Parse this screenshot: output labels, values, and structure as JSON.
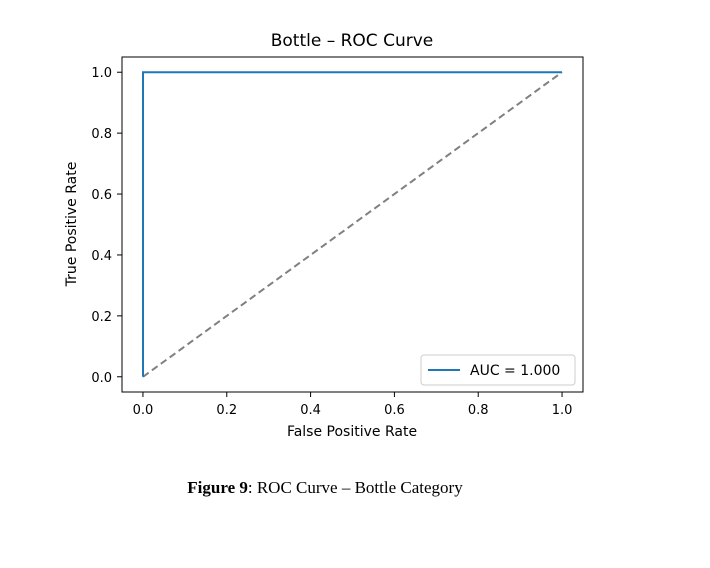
{
  "chart_data": {
    "type": "line",
    "title": "Bottle – ROC Curve",
    "xlabel": "False Positive Rate",
    "ylabel": "True Positive Rate",
    "xlim": [
      -0.05,
      1.05
    ],
    "ylim": [
      -0.05,
      1.05
    ],
    "xticks": [
      0.0,
      0.2,
      0.4,
      0.6,
      0.8,
      1.0
    ],
    "yticks": [
      0.0,
      0.2,
      0.4,
      0.6,
      0.8,
      1.0
    ],
    "xtick_labels": [
      "0.0",
      "0.2",
      "0.4",
      "0.6",
      "0.8",
      "1.0"
    ],
    "ytick_labels": [
      "0.0",
      "0.2",
      "0.4",
      "0.6",
      "0.8",
      "1.0"
    ],
    "grid": false,
    "legend_position": "lower-right",
    "series": [
      {
        "name": "AUC = 1.000",
        "x": [
          0.0,
          0.0,
          1.0
        ],
        "y": [
          0.0,
          1.0,
          1.0
        ],
        "color": "#1f77b4",
        "style": "solid"
      },
      {
        "x": [
          0.0,
          1.0
        ],
        "y": [
          0.0,
          1.0
        ],
        "color": "#808080",
        "style": "dashed"
      }
    ]
  },
  "caption": {
    "label": "Figure 9",
    "text": ": ROC Curve – Bottle Category"
  }
}
